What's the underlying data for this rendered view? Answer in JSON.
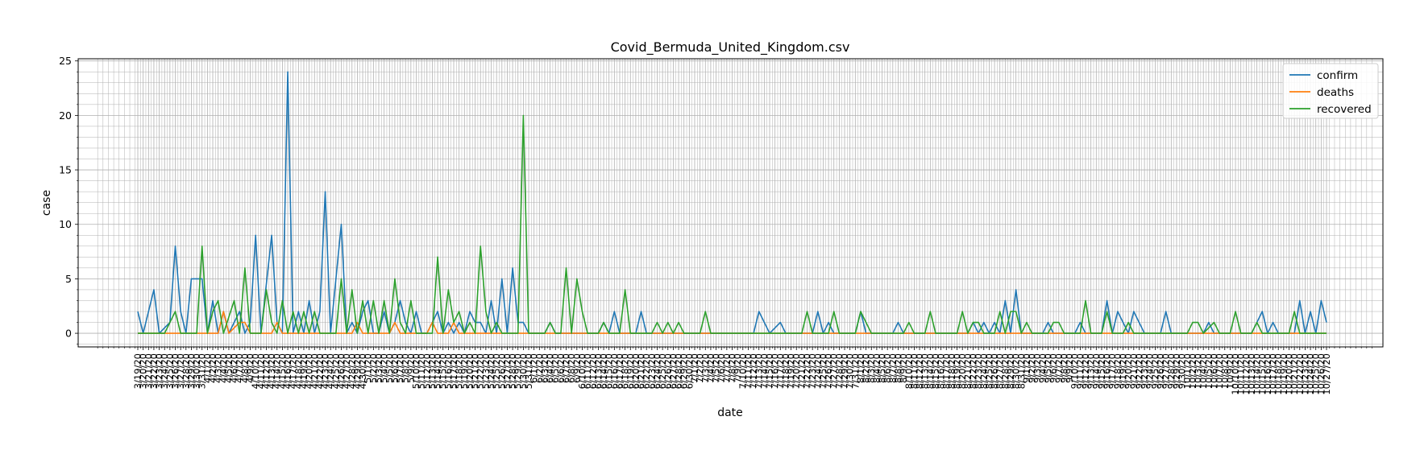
{
  "chart_data": {
    "type": "line",
    "title": "Covid_Bermuda_United_Kingdom.csv",
    "xlabel": "date",
    "ylabel": "case",
    "ylim": [
      -1.25,
      25.2
    ],
    "yticks": [
      0,
      5,
      10,
      15,
      20,
      25
    ],
    "grid": true,
    "legend_position": "top-right",
    "start_date": "3/19/20",
    "end_date": "10/27/20",
    "colors": {
      "confirm": "#1f77b4",
      "deaths": "#ff7f0e",
      "recovered": "#2ca02c",
      "grid": "#b0b0b0",
      "plot_bg": "#ffffff"
    },
    "series": [
      {
        "name": "confirm",
        "color": "#1f77b4",
        "points": [
          [
            "3/19/20",
            2
          ],
          [
            "3/20/20",
            0
          ],
          [
            "3/22/20",
            4
          ],
          [
            "3/23/20",
            0
          ],
          [
            "3/25/20",
            1
          ],
          [
            "3/26/20",
            8
          ],
          [
            "3/27/20",
            2
          ],
          [
            "3/28/20",
            0
          ],
          [
            "3/29/20",
            5
          ],
          [
            "3/31/20",
            5
          ],
          [
            "4/1/20",
            0
          ],
          [
            "4/2/20",
            3
          ],
          [
            "4/3/20",
            0
          ],
          [
            "4/4/20",
            2
          ],
          [
            "4/5/20",
            0
          ],
          [
            "4/7/20",
            2
          ],
          [
            "4/8/20",
            0
          ],
          [
            "4/9/20",
            1
          ],
          [
            "4/10/20",
            9
          ],
          [
            "4/11/20",
            0
          ],
          [
            "4/13/20",
            9
          ],
          [
            "4/14/20",
            1
          ],
          [
            "4/15/20",
            0
          ],
          [
            "4/16/20",
            24
          ],
          [
            "4/17/20",
            0
          ],
          [
            "4/18/20",
            2
          ],
          [
            "4/19/20",
            0
          ],
          [
            "4/20/20",
            3
          ],
          [
            "4/21/20",
            0
          ],
          [
            "4/22/20",
            2
          ],
          [
            "4/23/20",
            13
          ],
          [
            "4/24/20",
            0
          ],
          [
            "4/26/20",
            10
          ],
          [
            "4/27/20",
            0
          ],
          [
            "4/28/20",
            1
          ],
          [
            "4/29/20",
            0
          ],
          [
            "4/30/20",
            2
          ],
          [
            "5/1/20",
            3
          ],
          [
            "5/2/20",
            0
          ],
          [
            "5/3/20",
            0
          ],
          [
            "5/4/20",
            2
          ],
          [
            "5/5/20",
            0
          ],
          [
            "5/6/20",
            1
          ],
          [
            "5/7/20",
            3
          ],
          [
            "5/8/20",
            1
          ],
          [
            "5/9/20",
            0
          ],
          [
            "5/10/20",
            2
          ],
          [
            "5/11/20",
            0
          ],
          [
            "5/12/20",
            0
          ],
          [
            "5/13/20",
            1
          ],
          [
            "5/14/20",
            2
          ],
          [
            "5/15/20",
            0
          ],
          [
            "5/16/20",
            1
          ],
          [
            "5/17/20",
            0
          ],
          [
            "5/18/20",
            1
          ],
          [
            "5/19/20",
            0
          ],
          [
            "5/20/20",
            2
          ],
          [
            "5/21/20",
            1
          ],
          [
            "5/22/20",
            1
          ],
          [
            "5/23/20",
            0
          ],
          [
            "5/24/20",
            3
          ],
          [
            "5/25/20",
            0
          ],
          [
            "5/26/20",
            5
          ],
          [
            "5/27/20",
            0
          ],
          [
            "5/28/20",
            6
          ],
          [
            "5/29/20",
            1
          ],
          [
            "5/30/20",
            1
          ],
          [
            "5/31/20",
            0
          ],
          [
            "6/3/20",
            0
          ],
          [
            "6/4/20",
            1
          ],
          [
            "6/5/20",
            0
          ],
          [
            "6/13/20",
            0
          ],
          [
            "6/14/20",
            1
          ],
          [
            "6/15/20",
            0
          ],
          [
            "6/16/20",
            2
          ],
          [
            "6/17/20",
            0
          ],
          [
            "6/20/20",
            0
          ],
          [
            "6/21/20",
            2
          ],
          [
            "6/22/20",
            0
          ],
          [
            "7/12/20",
            0
          ],
          [
            "7/13/20",
            2
          ],
          [
            "7/15/20",
            0
          ],
          [
            "7/17/20",
            1
          ],
          [
            "7/18/20",
            0
          ],
          [
            "7/23/20",
            0
          ],
          [
            "7/24/20",
            2
          ],
          [
            "7/25/20",
            0
          ],
          [
            "7/26/20",
            1
          ],
          [
            "7/27/20",
            0
          ],
          [
            "7/31/20",
            0
          ],
          [
            "8/1/20",
            2
          ],
          [
            "8/2/20",
            0
          ],
          [
            "8/7/20",
            0
          ],
          [
            "8/8/20",
            1
          ],
          [
            "8/9/20",
            0
          ],
          [
            "8/21/20",
            0
          ],
          [
            "8/22/20",
            1
          ],
          [
            "8/23/20",
            0
          ],
          [
            "8/24/20",
            1
          ],
          [
            "8/25/20",
            0
          ],
          [
            "8/26/20",
            1
          ],
          [
            "8/27/20",
            0
          ],
          [
            "8/28/20",
            3
          ],
          [
            "8/29/20",
            0
          ],
          [
            "8/30/20",
            4
          ],
          [
            "8/31/20",
            0
          ],
          [
            "9/4/20",
            0
          ],
          [
            "9/5/20",
            1
          ],
          [
            "9/6/20",
            0
          ],
          [
            "9/10/20",
            0
          ],
          [
            "9/11/20",
            1
          ],
          [
            "9/12/20",
            0
          ],
          [
            "9/15/20",
            0
          ],
          [
            "9/16/20",
            3
          ],
          [
            "9/17/20",
            0
          ],
          [
            "9/18/20",
            2
          ],
          [
            "9/19/20",
            1
          ],
          [
            "9/20/20",
            0
          ],
          [
            "9/21/20",
            2
          ],
          [
            "9/22/20",
            1
          ],
          [
            "9/23/20",
            0
          ],
          [
            "9/26/20",
            0
          ],
          [
            "9/27/20",
            2
          ],
          [
            "9/28/20",
            0
          ],
          [
            "10/4/20",
            0
          ],
          [
            "10/5/20",
            1
          ],
          [
            "10/6/20",
            0
          ],
          [
            "10/13/20",
            0
          ],
          [
            "10/14/20",
            1
          ],
          [
            "10/15/20",
            2
          ],
          [
            "10/16/20",
            0
          ],
          [
            "10/17/20",
            1
          ],
          [
            "10/18/20",
            0
          ],
          [
            "10/21/20",
            0
          ],
          [
            "10/22/20",
            3
          ],
          [
            "10/23/20",
            0
          ],
          [
            "10/24/20",
            2
          ],
          [
            "10/25/20",
            0
          ],
          [
            "10/26/20",
            3
          ],
          [
            "10/27/20",
            1
          ]
        ]
      },
      {
        "name": "deaths",
        "color": "#ff7f0e",
        "points": [
          [
            "3/19/20",
            0
          ],
          [
            "4/3/20",
            0
          ],
          [
            "4/4/20",
            2
          ],
          [
            "4/5/20",
            0
          ],
          [
            "4/7/20",
            1
          ],
          [
            "4/8/20",
            1
          ],
          [
            "4/9/20",
            0
          ],
          [
            "4/13/20",
            0
          ],
          [
            "4/14/20",
            1
          ],
          [
            "4/15/20",
            0
          ],
          [
            "4/28/20",
            0
          ],
          [
            "4/29/20",
            1
          ],
          [
            "4/30/20",
            0
          ],
          [
            "5/5/20",
            0
          ],
          [
            "5/6/20",
            1
          ],
          [
            "5/7/20",
            0
          ],
          [
            "5/12/20",
            0
          ],
          [
            "5/13/20",
            1
          ],
          [
            "5/14/20",
            0
          ],
          [
            "5/16/20",
            0
          ],
          [
            "5/17/20",
            1
          ],
          [
            "5/18/20",
            0
          ],
          [
            "10/27/20",
            0
          ]
        ]
      },
      {
        "name": "recovered",
        "color": "#2ca02c",
        "points": [
          [
            "3/19/20",
            0
          ],
          [
            "3/24/20",
            0
          ],
          [
            "3/25/20",
            1
          ],
          [
            "3/26/20",
            2
          ],
          [
            "3/27/20",
            0
          ],
          [
            "3/30/20",
            0
          ],
          [
            "3/31/20",
            8
          ],
          [
            "4/1/20",
            0
          ],
          [
            "4/2/20",
            2
          ],
          [
            "4/3/20",
            3
          ],
          [
            "4/4/20",
            0
          ],
          [
            "4/6/20",
            3
          ],
          [
            "4/7/20",
            0
          ],
          [
            "4/8/20",
            6
          ],
          [
            "4/9/20",
            0
          ],
          [
            "4/11/20",
            0
          ],
          [
            "4/12/20",
            4
          ],
          [
            "4/13/20",
            1
          ],
          [
            "4/14/20",
            0
          ],
          [
            "4/15/20",
            3
          ],
          [
            "4/16/20",
            0
          ],
          [
            "4/17/20",
            2
          ],
          [
            "4/18/20",
            0
          ],
          [
            "4/19/20",
            2
          ],
          [
            "4/20/20",
            0
          ],
          [
            "4/21/20",
            2
          ],
          [
            "4/22/20",
            0
          ],
          [
            "4/25/20",
            0
          ],
          [
            "4/26/20",
            5
          ],
          [
            "4/27/20",
            0
          ],
          [
            "4/28/20",
            4
          ],
          [
            "4/29/20",
            0
          ],
          [
            "4/30/20",
            3
          ],
          [
            "5/1/20",
            0
          ],
          [
            "5/2/20",
            3
          ],
          [
            "5/3/20",
            0
          ],
          [
            "5/4/20",
            3
          ],
          [
            "5/5/20",
            0
          ],
          [
            "5/6/20",
            5
          ],
          [
            "5/7/20",
            1
          ],
          [
            "5/8/20",
            0
          ],
          [
            "5/9/20",
            3
          ],
          [
            "5/10/20",
            0
          ],
          [
            "5/13/20",
            0
          ],
          [
            "5/14/20",
            7
          ],
          [
            "5/15/20",
            0
          ],
          [
            "5/16/20",
            4
          ],
          [
            "5/17/20",
            1
          ],
          [
            "5/18/20",
            2
          ],
          [
            "5/19/20",
            0
          ],
          [
            "5/20/20",
            1
          ],
          [
            "5/21/20",
            0
          ],
          [
            "5/22/20",
            8
          ],
          [
            "5/23/20",
            2
          ],
          [
            "5/24/20",
            0
          ],
          [
            "5/25/20",
            1
          ],
          [
            "5/26/20",
            0
          ],
          [
            "5/29/20",
            0
          ],
          [
            "5/30/20",
            20
          ],
          [
            "5/31/20",
            0
          ],
          [
            "6/3/20",
            0
          ],
          [
            "6/4/20",
            1
          ],
          [
            "6/5/20",
            0
          ],
          [
            "6/6/20",
            0
          ],
          [
            "6/7/20",
            6
          ],
          [
            "6/8/20",
            0
          ],
          [
            "6/9/20",
            5
          ],
          [
            "6/10/20",
            2
          ],
          [
            "6/11/20",
            0
          ],
          [
            "6/13/20",
            0
          ],
          [
            "6/14/20",
            1
          ],
          [
            "6/15/20",
            0
          ],
          [
            "6/17/20",
            0
          ],
          [
            "6/18/20",
            4
          ],
          [
            "6/19/20",
            0
          ],
          [
            "6/23/20",
            0
          ],
          [
            "6/24/20",
            1
          ],
          [
            "6/25/20",
            0
          ],
          [
            "6/26/20",
            1
          ],
          [
            "6/27/20",
            0
          ],
          [
            "6/28/20",
            1
          ],
          [
            "6/29/20",
            0
          ],
          [
            "7/2/20",
            0
          ],
          [
            "7/3/20",
            2
          ],
          [
            "7/4/20",
            0
          ],
          [
            "7/21/20",
            0
          ],
          [
            "7/22/20",
            2
          ],
          [
            "7/23/20",
            0
          ],
          [
            "7/26/20",
            0
          ],
          [
            "7/27/20",
            2
          ],
          [
            "7/28/20",
            0
          ],
          [
            "7/31/20",
            0
          ],
          [
            "8/1/20",
            2
          ],
          [
            "8/2/20",
            1
          ],
          [
            "8/3/20",
            0
          ],
          [
            "8/9/20",
            0
          ],
          [
            "8/10/20",
            1
          ],
          [
            "8/11/20",
            0
          ],
          [
            "8/13/20",
            0
          ],
          [
            "8/14/20",
            2
          ],
          [
            "8/15/20",
            0
          ],
          [
            "8/19/20",
            0
          ],
          [
            "8/20/20",
            2
          ],
          [
            "8/21/20",
            0
          ],
          [
            "8/22/20",
            1
          ],
          [
            "8/23/20",
            1
          ],
          [
            "8/24/20",
            0
          ],
          [
            "8/26/20",
            0
          ],
          [
            "8/27/20",
            2
          ],
          [
            "8/28/20",
            0
          ],
          [
            "8/29/20",
            2
          ],
          [
            "8/30/20",
            2
          ],
          [
            "8/31/20",
            0
          ],
          [
            "9/1/20",
            1
          ],
          [
            "9/2/20",
            0
          ],
          [
            "9/5/20",
            0
          ],
          [
            "9/6/20",
            1
          ],
          [
            "9/7/20",
            1
          ],
          [
            "9/8/20",
            0
          ],
          [
            "9/11/20",
            0
          ],
          [
            "9/12/20",
            3
          ],
          [
            "9/13/20",
            0
          ],
          [
            "9/15/20",
            0
          ],
          [
            "9/16/20",
            2
          ],
          [
            "9/17/20",
            0
          ],
          [
            "9/19/20",
            0
          ],
          [
            "9/20/20",
            1
          ],
          [
            "9/21/20",
            0
          ],
          [
            "10/1/20",
            0
          ],
          [
            "10/2/20",
            1
          ],
          [
            "10/3/20",
            1
          ],
          [
            "10/4/20",
            0
          ],
          [
            "10/6/20",
            1
          ],
          [
            "10/7/20",
            0
          ],
          [
            "10/9/20",
            0
          ],
          [
            "10/10/20",
            2
          ],
          [
            "10/11/20",
            0
          ],
          [
            "10/13/20",
            0
          ],
          [
            "10/14/20",
            1
          ],
          [
            "10/15/20",
            0
          ],
          [
            "10/20/20",
            0
          ],
          [
            "10/21/20",
            2
          ],
          [
            "10/22/20",
            0
          ],
          [
            "10/27/20",
            0
          ]
        ]
      }
    ]
  }
}
